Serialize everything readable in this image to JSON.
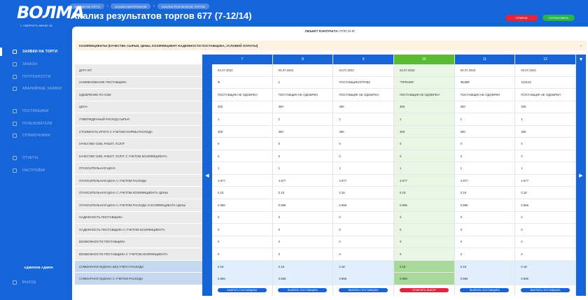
{
  "app": {
    "logo": "ВОЛМА",
    "collapse_label": "СВЕРНУТЬ МЕНЮ",
    "collapse_shortcut": "Ю"
  },
  "sidebar": {
    "items": [
      {
        "label": "ЗАЯВКИ НА ТОРГИ",
        "icon": "list-icon",
        "active": true
      },
      {
        "label": "ЗАКАЗЫ",
        "icon": "cart-icon",
        "active": false
      },
      {
        "label": "ПОТРЕБНОСТИ",
        "icon": "box-icon",
        "active": false
      },
      {
        "label": "АВАРИЙНЫЕ ЗАЯВКИ",
        "icon": "alert-icon",
        "active": false
      },
      {
        "label": "ПОСТАВЩИКИ",
        "icon": "truck-icon",
        "active": false
      },
      {
        "label": "ПОЛЬЗОВАТЕЛИ",
        "icon": "users-icon",
        "active": false
      },
      {
        "label": "СПРАВОЧНИКИ",
        "icon": "book-icon",
        "active": false
      },
      {
        "label": "ОТЧЕТЫ",
        "icon": "report-icon",
        "active": false
      },
      {
        "label": "НАСТРОЙКИ",
        "icon": "gear-icon",
        "active": false
      }
    ],
    "user": "АДМИНОВ АДМИН",
    "logout": "ВЫХОД"
  },
  "header": {
    "breadcrumbs": [
      "ЗАЯВКИ НА ТОРГИ",
      "АНАЛИЗ МАТЕРИАЛОВ",
      "АНАЛИЗ РЕЗУЛЬТАТОВ ТОРГОВ"
    ],
    "title": "Анализ результатов торгов 677 (7-12/14)",
    "cancel_label": "ОТМЕНА",
    "approve_label": "СОГЛАСОВАТЬ"
  },
  "contract": {
    "label": "ОБЪЕКТ КОНТРАКТА:",
    "value": "ППП 10 КГ"
  },
  "coefficients_title": "КОЭФФИЦИЕНТЫ (КАЧЕСТВА СЫРЬЯ, ЦЕНЫ, КОЭФФИЦИЕНТ НАДЕЖНОСТИ ПОСТАВЩИКА, УСЛОВИЙ ОПЛАТЫ)",
  "table": {
    "row_labels": [
      "ДАТА КП",
      "НАИМЕНОВАНИЕ ПОСТАВЩИКА",
      "ОДОБРЕНИЕ ПО ОЗМ",
      "ЦЕНА",
      "УТВЕРЖДЕННЫЙ РАСХОД СЫРЬЯ",
      "СТОИМОСТЬ ИТОГО С УЧЕТОМ НОРМЫ РАСХОДА",
      "КАЧЕСТВО ОЗМ, РАБОТ, УСЛУГ",
      "КАЧЕСТВО ОЗМ, РАБОТ, УСЛУГ С УЧЕТОМ КОЭФФИЦИЕНТА",
      "ОТНОСИТЕЛЬНАЯ ЦЕНА",
      "ОТНОСИТЕЛЬНАЯ ЦЕНА С УЧЕТОМ РАСХОДА",
      "ОТНОСИТЕЛЬНАЯ ЦЕНА С УЧЕТОМ КОЭФФИЦИЕНТА ЦЕНЫ",
      "ОТНОСИТЕЛЬНАЯ ЦЕНА С УЧЕТОМ РАСХОДА И КОЭФФИЦИЕНТА ЦЕНЫ",
      "НАДЕЖНОСТЬ ПОСТАВЩИКА",
      "НАДЕЖНОСТЬ ПОСТАВЩИКА С УЧЕТОМ КОЭФФИЦИЕНТА",
      "ВОЗМОЖНОСТИ ПОСТАВЩИКА",
      "ВОЗМОЖНОСТИ ПОСТАВЩИКА С УЧЕТОМ КОЭФФИЦИЕНТА",
      "СУММАРНАЯ ОЦЕНКА БЕЗ УЧЕТА РАСХОДА",
      "СУММАРНАЯ ОЦЕНКА С УЧЕТОМ РАСХОДА"
    ],
    "columns": [
      {
        "num": "7",
        "selected": false,
        "button": "ВЫБРАТЬ ПОСТАВЩИКА",
        "values": [
          "04.07.2022",
          "Ф",
          "ПОСТАВЩИК НЕ ОДОБРЕН",
          "300",
          "1",
          "300",
          "0",
          "0",
          "1",
          "4.977",
          "0.18",
          "0.896",
          "0",
          "0",
          "0",
          "0",
          "0.18",
          "0.896"
        ]
      },
      {
        "num": "8",
        "selected": false,
        "button": "ВЫБРАТЬ ПОСТАВЩИКА",
        "values": [
          "04.07.2022",
          "1",
          "ПОСТАВЩИК НЕ ОДОБРЕН",
          "300",
          "1",
          "300",
          "0",
          "0",
          "1",
          "4.977",
          "0.18",
          "0.896",
          "0",
          "0",
          "0",
          "0",
          "0.18",
          "0.896"
        ]
      },
      {
        "num": "9",
        "selected": false,
        "button": "ВЫБРАТЬ ПОСТАВЩИКА",
        "values": [
          "04.07.2022",
          "ПОСТАВЩИКОПТОВ2",
          "ПОСТАВЩИК НЕ ОДОБРЕН",
          "300",
          "1",
          "300",
          "0",
          "0",
          "1",
          "4.977",
          "0.18",
          "0.896",
          "0",
          "0",
          "0",
          "0",
          "0.18",
          "0.896"
        ]
      },
      {
        "num": "10",
        "selected": true,
        "button": "ОТМЕНИТЬ ВЫБОР",
        "values": [
          "04.07.2022",
          "\"ПРЯНИК\"",
          "ПОСТАВЩИК НЕ ОДОБРЕН",
          "300",
          "1",
          "300",
          "0",
          "0",
          "1",
          "4.977",
          "0.18",
          "0.896",
          "0",
          "0",
          "0",
          "0",
          "0.18",
          "0.896"
        ]
      },
      {
        "num": "11",
        "selected": false,
        "button": "ВЫБРАТЬ ПОСТАВЩИКА",
        "values": [
          "04.07.2022",
          "ФЫВФ",
          "ПОСТАВЩИК НЕ ОДОБРЕН",
          "300",
          "1",
          "300",
          "0",
          "0",
          "1",
          "4.977",
          "0.18",
          "0.896",
          "0",
          "0",
          "0",
          "0",
          "0.18",
          "0.896"
        ]
      },
      {
        "num": "12",
        "selected": false,
        "button": "ВЫБРАТЬ ПОСТАВЩИКА",
        "values": [
          "04.07.2022",
          "123123",
          "ПОСТАВЩИК НЕ ОДОБРЕН",
          "300",
          "1",
          "300",
          "0",
          "0",
          "1",
          "4.977",
          "0.18",
          "0.896",
          "0",
          "0",
          "0",
          "0",
          "0.18",
          "0.896"
        ]
      }
    ]
  },
  "nav": {
    "prev_icon": "◀",
    "next_icon": "▶",
    "filter_icon": "▼"
  },
  "colors": {
    "brand_blue": "#1565d8",
    "selected_green": "#5bba2f",
    "cancel_red": "#e2243f",
    "approve_green": "#29b34a"
  }
}
